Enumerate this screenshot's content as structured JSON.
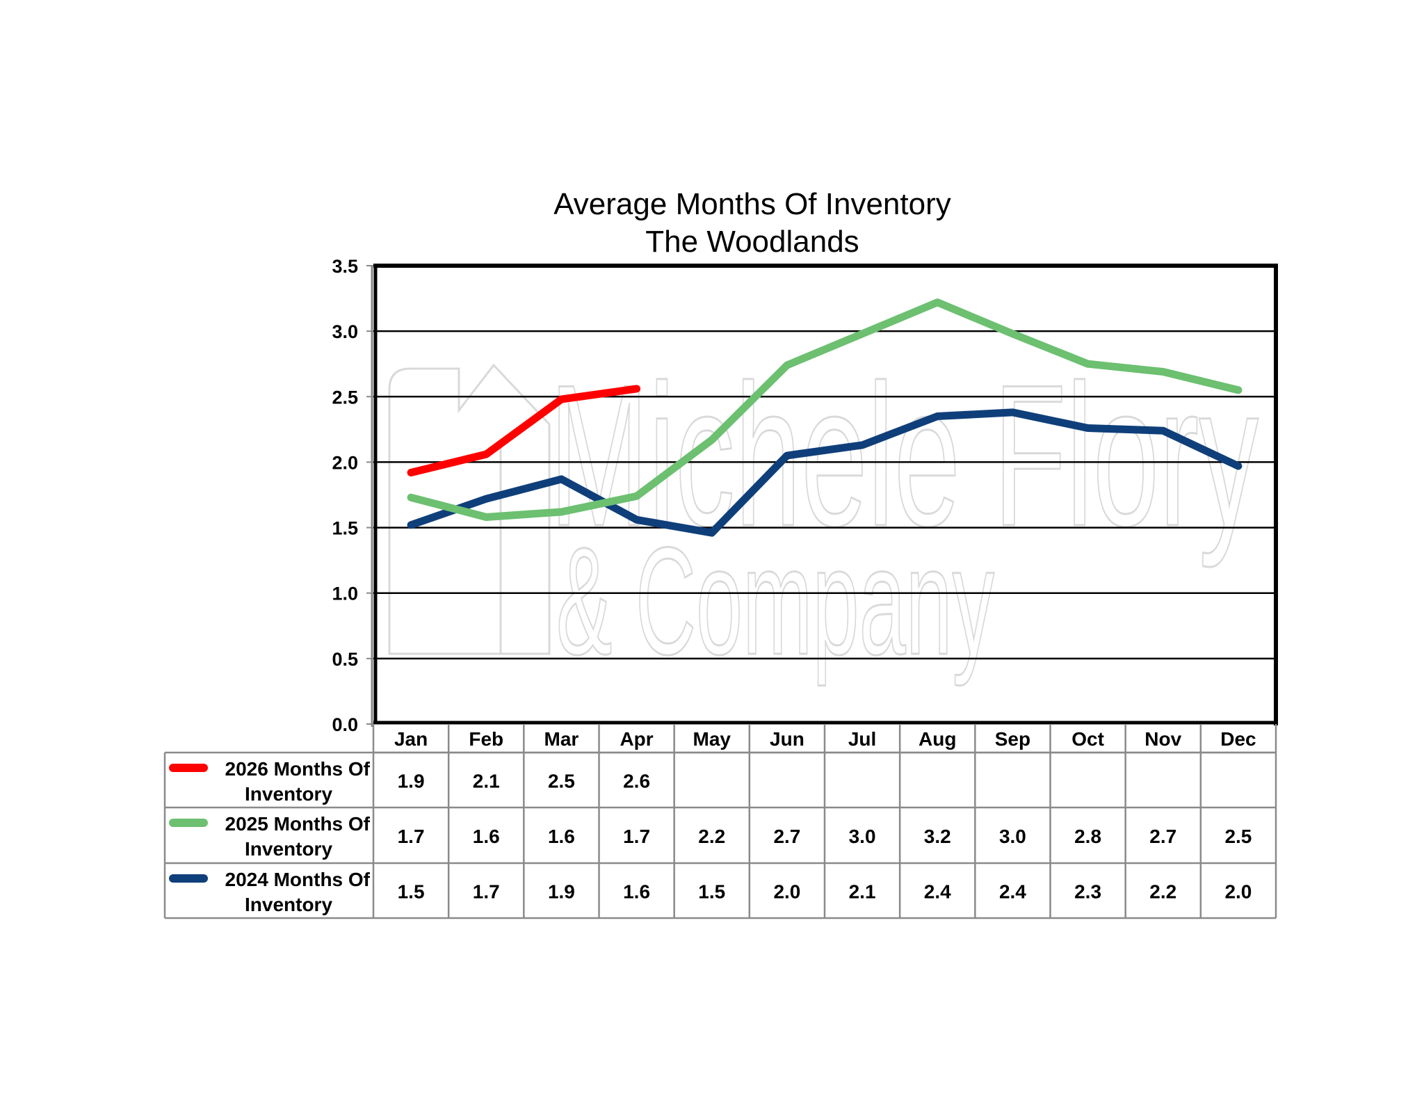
{
  "chart_data": {
    "type": "line",
    "title": "Average Months Of Inventory",
    "subtitle": "The Woodlands",
    "xlabel": "",
    "ylabel": "",
    "ylim": [
      0,
      3.5
    ],
    "yticks": [
      "0.0",
      "0.5",
      "1.0",
      "1.5",
      "2.0",
      "2.5",
      "3.0",
      "3.5"
    ],
    "ytick_values": [
      0,
      0.5,
      1.0,
      1.5,
      2.0,
      2.5,
      3.0,
      3.5
    ],
    "grid": true,
    "legend": "data-table-left",
    "categories": [
      "Jan",
      "Feb",
      "Mar",
      "Apr",
      "May",
      "Jun",
      "Jul",
      "Aug",
      "Sep",
      "Oct",
      "Nov",
      "Dec"
    ],
    "series": [
      {
        "name": "2026 Months Of Inventory",
        "label_line1": "2026 Months Of",
        "label_line2": "Inventory",
        "color": "#ff0000",
        "values": [
          1.92,
          2.06,
          2.48,
          2.56
        ],
        "table_values": [
          "1.9",
          "2.1",
          "2.5",
          "2.6",
          "",
          "",
          "",
          "",
          "",
          "",
          "",
          ""
        ]
      },
      {
        "name": "2025 Months Of Inventory",
        "label_line1": "2025 Months Of",
        "label_line2": "Inventory",
        "color": "#6cc070",
        "values": [
          1.73,
          1.58,
          1.62,
          1.74,
          2.17,
          2.74,
          2.98,
          3.22,
          2.98,
          2.75,
          2.69,
          2.55
        ],
        "table_values": [
          "1.7",
          "1.6",
          "1.6",
          "1.7",
          "2.2",
          "2.7",
          "3.0",
          "3.2",
          "3.0",
          "2.8",
          "2.7",
          "2.5"
        ]
      },
      {
        "name": "2024 Months Of Inventory",
        "label_line1": "2024 Months Of",
        "label_line2": "Inventory",
        "color": "#0f3f7a",
        "values": [
          1.52,
          1.72,
          1.87,
          1.56,
          1.46,
          2.05,
          2.13,
          2.35,
          2.38,
          2.26,
          2.24,
          1.97
        ],
        "table_values": [
          "1.5",
          "1.7",
          "1.9",
          "1.6",
          "1.5",
          "2.0",
          "2.1",
          "2.4",
          "2.4",
          "2.3",
          "2.2",
          "2.0"
        ]
      }
    ]
  },
  "watermark": {
    "line1": "Michele Flory",
    "line2": "& Company"
  }
}
